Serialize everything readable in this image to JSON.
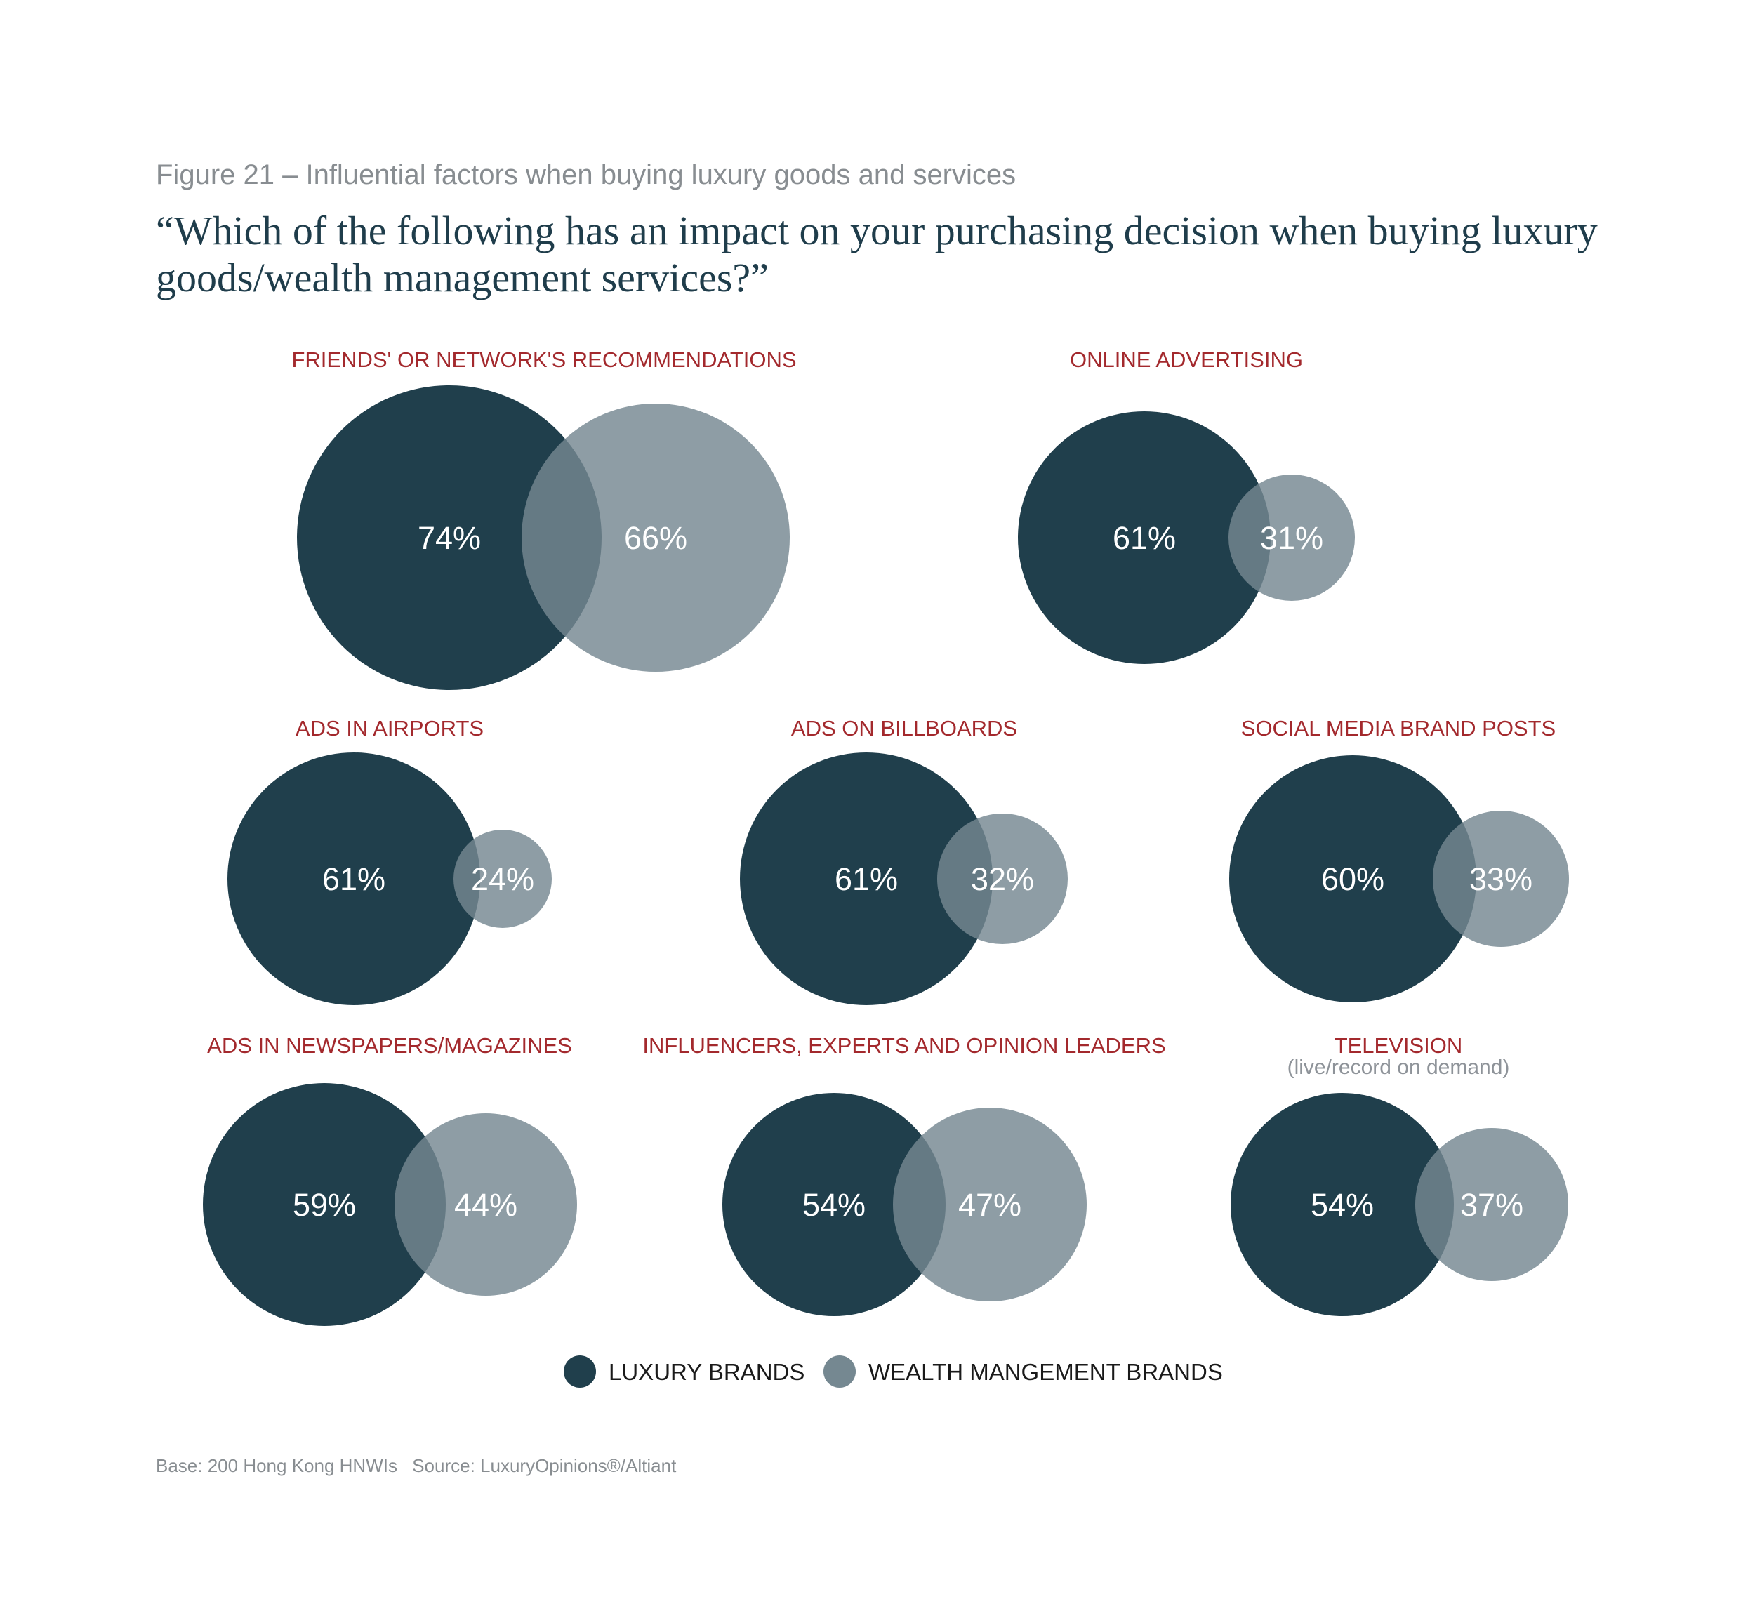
{
  "figure_label": "Figure 21 – Influential factors when buying luxury goods and services",
  "question_line1": "“Which of the following has an impact on your purchasing decision when buying luxury",
  "question_line2": "goods/wealth management services?”",
  "colors": {
    "luxury": "#203f4c",
    "wealth": "#758891",
    "label": "#a3292d"
  },
  "chart_data": {
    "type": "bubble-pairs",
    "series": [
      {
        "name": "LUXURY BRANDS",
        "values": [
          74,
          61,
          61,
          61,
          60,
          59,
          54,
          54
        ]
      },
      {
        "name": "WEALTH MANGEMENT BRANDS",
        "values": [
          66,
          31,
          24,
          32,
          33,
          44,
          47,
          37
        ]
      }
    ],
    "categories": [
      "FRIENDS' OR NETWORK'S RECOMMENDATIONS",
      "ONLINE ADVERTISING",
      "ADS IN AIRPORTS",
      "ADS ON BILLBOARDS",
      "SOCIAL MEDIA BRAND POSTS",
      "ADS IN NEWSPAPERS/MAGAZINES",
      "INFLUENCERS, EXPERTS AND OPINION LEADERS",
      "TELEVISION"
    ],
    "category_notes": [
      "",
      "",
      "",
      "",
      "",
      "",
      "",
      "(live/record on demand)"
    ],
    "legend": [
      "LUXURY BRANDS",
      "WEALTH MANGEMENT BRANDS"
    ],
    "unit": "%"
  },
  "footnote": {
    "base": "Base: 200 Hong Kong HNWIs",
    "source": "Source: LuxuryOpinions®/Altiant"
  }
}
